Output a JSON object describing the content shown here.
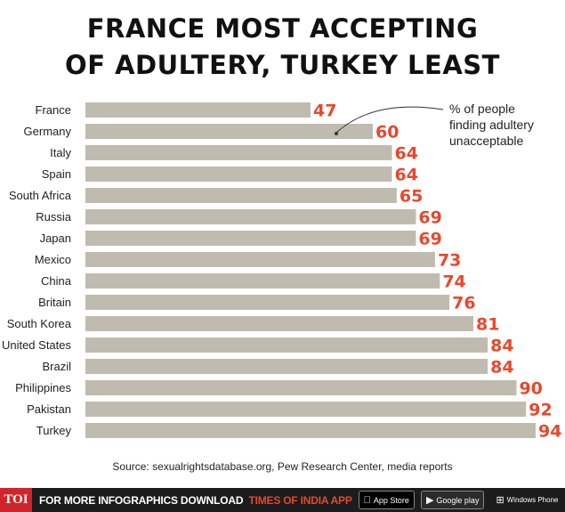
{
  "title_line1": "FRANCE MOST ACCEPTING",
  "title_line2": "OF ADULTERY, TURKEY LEAST",
  "annotation": [
    "% of people",
    "finding adultery",
    "unacceptable"
  ],
  "source": "Source: sexualrightsdatabase.org, Pew Research Center, media reports",
  "footer": {
    "brand": "TOI",
    "text": "FOR MORE  INFOGRAPHICS DOWNLOAD",
    "app_name": "TIMES OF INDIA APP",
    "app_store": "App Store",
    "google_play": "Google play",
    "windows_phone": "Windows Phone"
  },
  "colors": {
    "bar": "#bfbcaf",
    "value": "#e8482c",
    "title": "#111111",
    "footer_bg": "#1c1c1c",
    "brand_bg": "#d1232a"
  },
  "chart_data": {
    "type": "bar",
    "orientation": "horizontal",
    "categories": [
      "France",
      "Germany",
      "Italy",
      "Spain",
      "South Africa",
      "Russia",
      "Japan",
      "Mexico",
      "China",
      "Britain",
      "South Korea",
      "United States",
      "Brazil",
      "Philippines",
      "Pakistan",
      "Turkey"
    ],
    "values": [
      47,
      60,
      64,
      64,
      65,
      69,
      69,
      73,
      74,
      76,
      81,
      84,
      84,
      90,
      92,
      94
    ],
    "title": "FRANCE MOST ACCEPTING OF ADULTERY, TURKEY LEAST",
    "xlabel": "",
    "ylabel": "",
    "xlim": [
      0,
      94
    ],
    "grid": false,
    "data_labels": true
  }
}
